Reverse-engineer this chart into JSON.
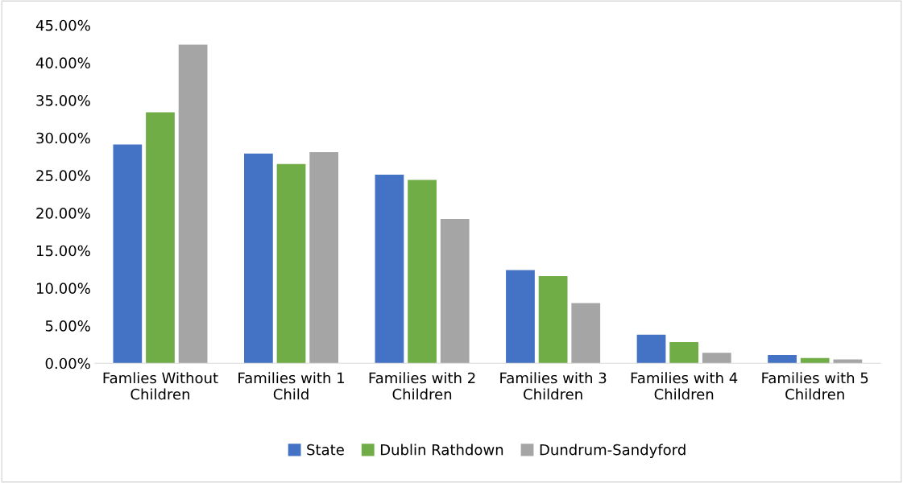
{
  "chart_data": {
    "type": "bar",
    "categories": [
      "Famlies Without Children",
      "Families with 1 Child",
      "Families with 2 Children",
      "Families with 3 Children",
      "Families with 4 Children",
      "Families with 5 Children"
    ],
    "series": [
      {
        "name": "State",
        "color": "#4472c4",
        "values": [
          29.1,
          27.9,
          25.1,
          12.4,
          3.8,
          1.1
        ]
      },
      {
        "name": "Dublin Rathdown",
        "color": "#70ad47",
        "values": [
          33.4,
          26.5,
          24.4,
          11.6,
          2.8,
          0.7
        ]
      },
      {
        "name": "Dundrum-Sandyford",
        "color": "#a5a5a5",
        "values": [
          42.4,
          28.1,
          19.2,
          8.0,
          1.4,
          0.5
        ]
      }
    ],
    "ylim": [
      0,
      45
    ],
    "yticks": [
      {
        "value": 0,
        "label": "0.00%"
      },
      {
        "value": 5,
        "label": "5.00%"
      },
      {
        "value": 10,
        "label": "10.00%"
      },
      {
        "value": 15,
        "label": "15.00%"
      },
      {
        "value": 20,
        "label": "20.00%"
      },
      {
        "value": 25,
        "label": "25.00%"
      },
      {
        "value": 30,
        "label": "30.00%"
      },
      {
        "value": 35,
        "label": "35.00%"
      },
      {
        "value": 40,
        "label": "40.00%"
      },
      {
        "value": 45,
        "label": "45.00%"
      }
    ],
    "grid": false,
    "legend": "bottom"
  }
}
